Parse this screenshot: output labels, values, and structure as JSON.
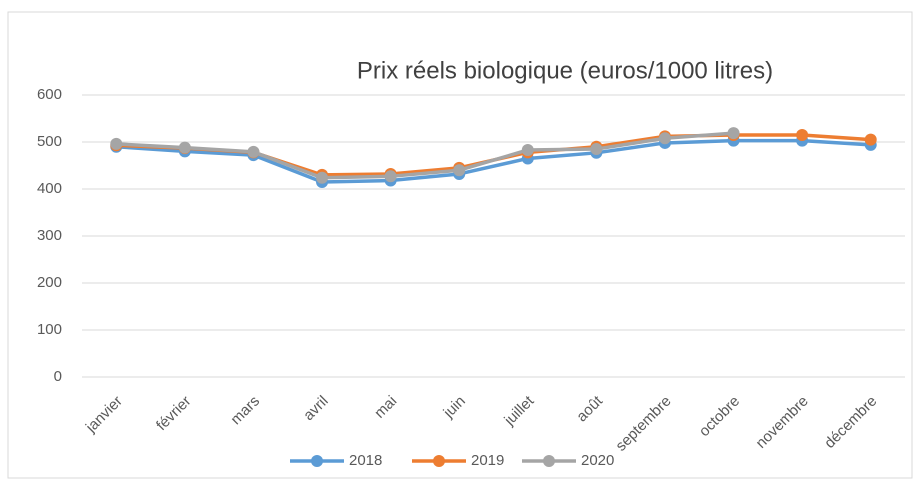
{
  "chart_data": {
    "type": "line",
    "title": "Prix réels biologique (euros/1000 litres)",
    "categories": [
      "janvier",
      "février",
      "mars",
      "avril",
      "mai",
      "juin",
      "juillet",
      "août",
      "septembre",
      "octobre",
      "novembre",
      "décembre"
    ],
    "series": [
      {
        "name": "2018",
        "color": "#5b9bd5",
        "values": [
          490,
          480,
          472,
          415,
          418,
          432,
          465,
          477,
          498,
          503,
          503,
          494
        ]
      },
      {
        "name": "2019",
        "color": "#ed7d31",
        "values": [
          493,
          487,
          478,
          430,
          432,
          445,
          478,
          490,
          512,
          515,
          515,
          505
        ]
      },
      {
        "name": "2020",
        "color": "#a5a5a5",
        "values": [
          496,
          488,
          479,
          424,
          427,
          440,
          483,
          485,
          508,
          519,
          null,
          null
        ]
      }
    ],
    "ylim": [
      0,
      600
    ],
    "yticks": [
      0,
      100,
      200,
      300,
      400,
      500,
      600
    ],
    "grid": true
  }
}
